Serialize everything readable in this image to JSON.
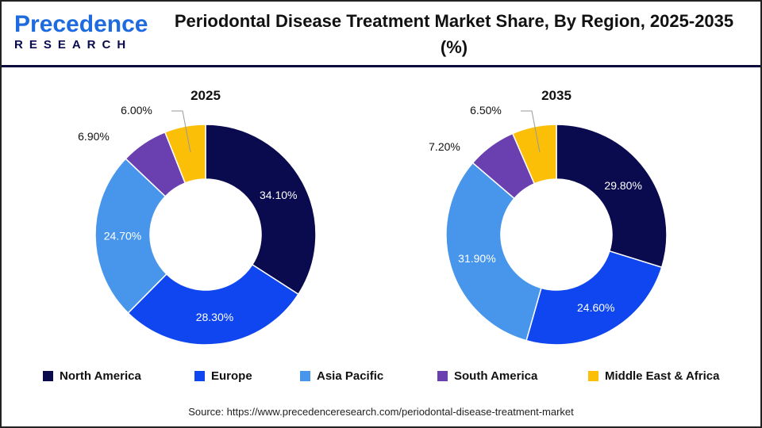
{
  "logo": {
    "line1a": "P",
    "line1b": "recedence",
    "line2": "RESEARCH"
  },
  "title": "Periodontal Disease Treatment Market Share, By Region, 2025-2035 (%)",
  "source": "Source: https://www.precedenceresearch.com/periodontal-disease-treatment-market",
  "chart_data": [
    {
      "type": "pie",
      "donut": true,
      "title": "2025",
      "categories": [
        "North America",
        "Europe",
        "Asia Pacific",
        "South America",
        "Middle East & Africa"
      ],
      "values": [
        34.1,
        28.3,
        24.7,
        6.9,
        6.0
      ],
      "labels": [
        "34.10%",
        "28.30%",
        "24.70%",
        "6.90%",
        "6.00%"
      ]
    },
    {
      "type": "pie",
      "donut": true,
      "title": "2035",
      "categories": [
        "North America",
        "Europe",
        "Asia Pacific",
        "South America",
        "Middle East & Africa"
      ],
      "values": [
        29.8,
        24.6,
        31.9,
        7.2,
        6.5
      ],
      "labels": [
        "29.80%",
        "24.60%",
        "31.90%",
        "7.20%",
        "6.50%"
      ]
    }
  ],
  "legend": [
    {
      "label": "North America",
      "color": "#0a0a4f"
    },
    {
      "label": "Europe",
      "color": "#0f46f0"
    },
    {
      "label": "Asia Pacific",
      "color": "#4796ec"
    },
    {
      "label": "South America",
      "color": "#6a40b0"
    },
    {
      "label": "Middle East & Africa",
      "color": "#fbbf08"
    }
  ]
}
